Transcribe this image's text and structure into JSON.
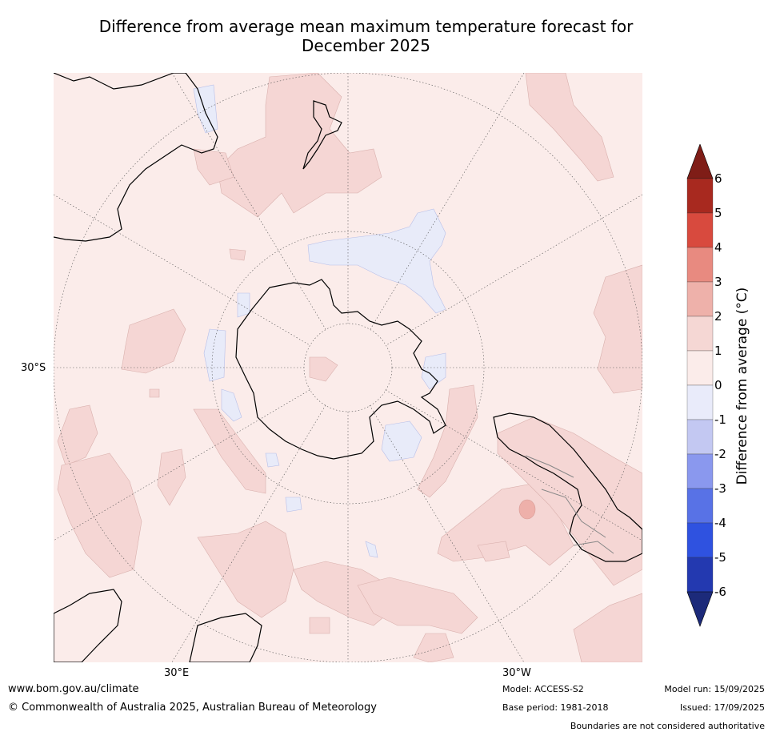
{
  "title_line1": "Difference from average mean maximum temperature forecast for",
  "title_line2": "December 2025",
  "map": {
    "projection": "south-polar-stereographic",
    "lat_label": "30°S",
    "lon_labels": [
      "30°E",
      "30°W"
    ]
  },
  "colorbar": {
    "label": "Difference from average (°C)",
    "ticks": [
      "6",
      "5",
      "4",
      "3",
      "2",
      "1",
      "0",
      "-1",
      "-2",
      "-3",
      "-4",
      "-5",
      "-6"
    ],
    "colors_top_to_bottom": [
      "#7f1d17",
      "#a8291f",
      "#d84a3e",
      "#e88a80",
      "#eeb1aa",
      "#f5d7d4",
      "#fbecea",
      "#e9ebfa",
      "#c3c8f2",
      "#8a98ee",
      "#5872e6",
      "#2f52e0",
      "#2339b0",
      "#1c2a7a"
    ],
    "extend": "both"
  },
  "footer": {
    "url": "www.bom.gov.au/climate",
    "copyright": "© Commonwealth of Australia 2025, Australian Bureau of Meteorology",
    "model": "Model: ACCESS-S2",
    "base_period": "Base period: 1981-2018",
    "model_run": "Model run: 15/09/2025",
    "issued": "Issued: 17/09/2025",
    "disclaimer": "Boundaries are not considered authoritative"
  }
}
